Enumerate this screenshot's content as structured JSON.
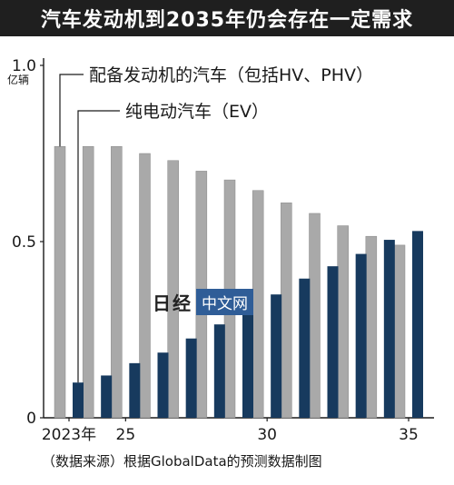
{
  "title": "汽车发动机到2035年仍会存在一定需求",
  "source": "（数据来源）根据GlobalData的预测数据制图",
  "watermark": {
    "logo": "日经",
    "box": "中文网"
  },
  "colors": {
    "engine": "#a9a9a9",
    "ev": "#173a5e",
    "title_bg": "#1f1f1f"
  },
  "chart_data": {
    "type": "bar",
    "title": "汽车发动机到2035年仍会存在一定需求",
    "unit": "亿辆",
    "ylim": [
      0,
      1.0
    ],
    "yticks": [
      "0",
      "0.5",
      "1.0"
    ],
    "xtick_labels": [
      {
        "year": 2023,
        "label": "2023年"
      },
      {
        "year": 2025,
        "label": "25"
      },
      {
        "year": 2030,
        "label": "30"
      },
      {
        "year": 2035,
        "label": "35"
      }
    ],
    "categories": [
      2023,
      2024,
      2025,
      2026,
      2027,
      2028,
      2029,
      2030,
      2031,
      2032,
      2033,
      2034,
      2035
    ],
    "series": [
      {
        "name": "配备发动机的汽车（包括HV、PHV）",
        "values": [
          0.77,
          0.77,
          0.77,
          0.75,
          0.73,
          0.7,
          0.675,
          0.645,
          0.61,
          0.58,
          0.545,
          0.515,
          0.49
        ]
      },
      {
        "name": "纯电动汽车（EV）",
        "values": [
          0.1,
          0.12,
          0.155,
          0.185,
          0.225,
          0.265,
          0.305,
          0.35,
          0.395,
          0.43,
          0.465,
          0.505,
          0.53
        ]
      }
    ],
    "grid": false,
    "legend": "top-left, callout lines"
  }
}
